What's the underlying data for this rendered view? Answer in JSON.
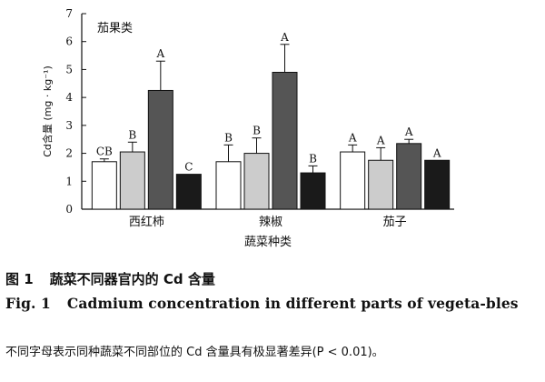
{
  "chart_data": {
    "type": "bar",
    "panel_label": "茄果类",
    "ylabel": "Cd含量 (mg · kg⁻¹)",
    "xlabel": "蔬菜种类",
    "ylim": [
      0,
      7
    ],
    "yticks": [
      0,
      1,
      2,
      3,
      4,
      5,
      6,
      7
    ],
    "categories": [
      "西红柿",
      "辣椒",
      "茄子"
    ],
    "series": [
      {
        "fill": "#ffffff",
        "values": [
          1.7,
          1.7,
          2.05
        ],
        "errors": [
          0.1,
          0.6,
          0.25
        ],
        "letters": [
          "CB",
          "B",
          "A"
        ]
      },
      {
        "fill": "#cccccc",
        "values": [
          2.05,
          2.0,
          1.75
        ],
        "errors": [
          0.35,
          0.55,
          0.45
        ],
        "letters": [
          "B",
          "B",
          "A"
        ]
      },
      {
        "fill": "#555555",
        "values": [
          4.25,
          4.9,
          2.35
        ],
        "errors": [
          1.05,
          1.0,
          0.15
        ],
        "letters": [
          "A",
          "A",
          "A"
        ]
      },
      {
        "fill": "#1a1a1a",
        "values": [
          1.25,
          1.3,
          1.75
        ],
        "errors": [
          0.0,
          0.25,
          0.0
        ],
        "letters": [
          "C",
          "B",
          "A"
        ]
      }
    ],
    "grid": false,
    "legend": "none"
  },
  "caption": {
    "cn_no": "图 1",
    "cn_title": "蔬菜不同器官内的 Cd 含量",
    "en_no": "Fig. 1",
    "en_title": "Cadmium concentration in different parts of vegeta-bles",
    "note": "不同字母表示同种蔬菜不同部位的 Cd 含量具有极显著差异(P < 0.01)。"
  }
}
